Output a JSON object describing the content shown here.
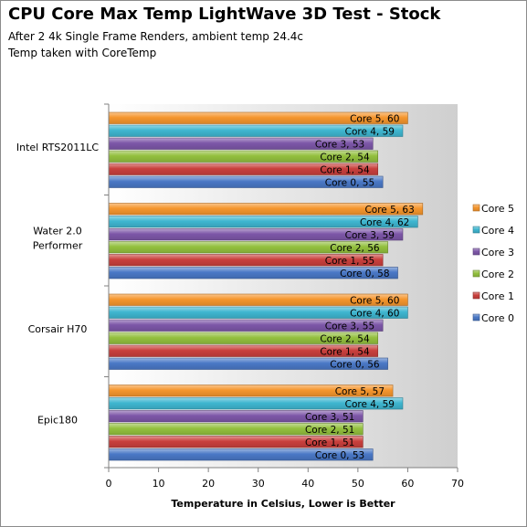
{
  "chart_data": {
    "type": "bar",
    "orientation": "horizontal",
    "title": "CPU Core Max Temp LightWave 3D Test - Stock",
    "subtitle_lines": [
      "After 2 4k Single Frame Renders, ambient temp 24.4c",
      "Temp taken with CoreTemp"
    ],
    "xlabel": "Temperature in Celsius,  Lower is Better",
    "ylabel": "",
    "xlim": [
      0,
      70
    ],
    "xticks": [
      0,
      10,
      20,
      30,
      40,
      50,
      60,
      70
    ],
    "grid": false,
    "legend_position": "right",
    "categories": [
      "Intel RTS2011LC",
      "Water 2.0 Performer",
      "Corsair H70",
      "Epic180"
    ],
    "category_display_lines": [
      [
        "Intel RTS2011LC"
      ],
      [
        "Water 2.0",
        "Performer"
      ],
      [
        "Corsair H70"
      ],
      [
        "Epic180"
      ]
    ],
    "series": [
      {
        "name": "Core 5",
        "color": "#f5962e",
        "values": [
          60,
          63,
          60,
          57
        ]
      },
      {
        "name": "Core 4",
        "color": "#3fb6d0",
        "values": [
          59,
          62,
          60,
          59
        ]
      },
      {
        "name": "Core 3",
        "color": "#7d57a8",
        "values": [
          53,
          59,
          55,
          51
        ]
      },
      {
        "name": "Core 2",
        "color": "#93c03e",
        "values": [
          54,
          56,
          54,
          51
        ]
      },
      {
        "name": "Core 1",
        "color": "#c9403d",
        "values": [
          54,
          55,
          54,
          51
        ]
      },
      {
        "name": "Core 0",
        "color": "#4a78c6",
        "values": [
          55,
          58,
          56,
          53
        ]
      }
    ]
  }
}
